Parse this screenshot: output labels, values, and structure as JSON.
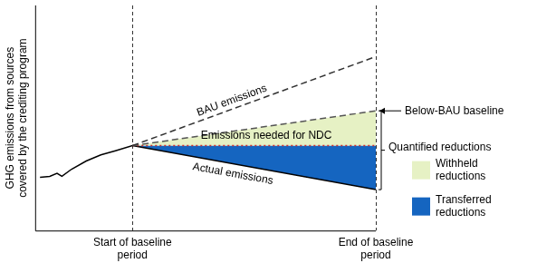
{
  "chart_data": {
    "type": "line",
    "ylabel": "GHG emissions from sources covered by the crediting program",
    "x": [
      -3.8,
      -3.4,
      -3.1,
      -2.9,
      -2.5,
      -1.9,
      -1.3,
      -0.7,
      0,
      10
    ],
    "xlim": [
      -4,
      10
    ],
    "xticks": [
      {
        "value": 0,
        "label": "Start of baseline period"
      },
      {
        "value": 10,
        "label": "End of baseline period"
      }
    ],
    "ylim": [
      0,
      22
    ],
    "tick_labels": "x",
    "grid": "x",
    "legend": "right",
    "annotations": [
      "Quantified reductions"
    ],
    "series": [
      {
        "name": "BAU emissions",
        "color": "#333333",
        "line_style": "dashed",
        "values": [
          null,
          null,
          null,
          null,
          null,
          null,
          null,
          null,
          8.3,
          17.0
        ]
      },
      {
        "name": "Below-BAU baseline",
        "color": "#555555",
        "line_style": "dashed",
        "values": [
          null,
          null,
          null,
          null,
          null,
          null,
          null,
          null,
          8.3,
          11.7
        ]
      },
      {
        "name": "Withheld reductions",
        "type": "area",
        "color": "#e6f1c4",
        "values": [
          null,
          null,
          null,
          null,
          null,
          null,
          null,
          null,
          8.3,
          11.7
        ]
      },
      {
        "name": "Emissions needed for NDC",
        "color": "#d0312d",
        "line_style": "dotted",
        "values": [
          null,
          null,
          null,
          null,
          null,
          null,
          null,
          null,
          8.3,
          8.3
        ]
      },
      {
        "name": "Transferred reductions",
        "type": "area",
        "color": "#1565c0",
        "values": [
          null,
          null,
          null,
          null,
          null,
          null,
          null,
          null,
          8.3,
          8.3
        ]
      },
      {
        "name": "Actual emissions",
        "color": "#000000",
        "line_style": "solid",
        "values": [
          5.2,
          5.3,
          5.6,
          5.3,
          6.0,
          6.8,
          7.4,
          7.8,
          8.3,
          4.0
        ]
      }
    ]
  }
}
